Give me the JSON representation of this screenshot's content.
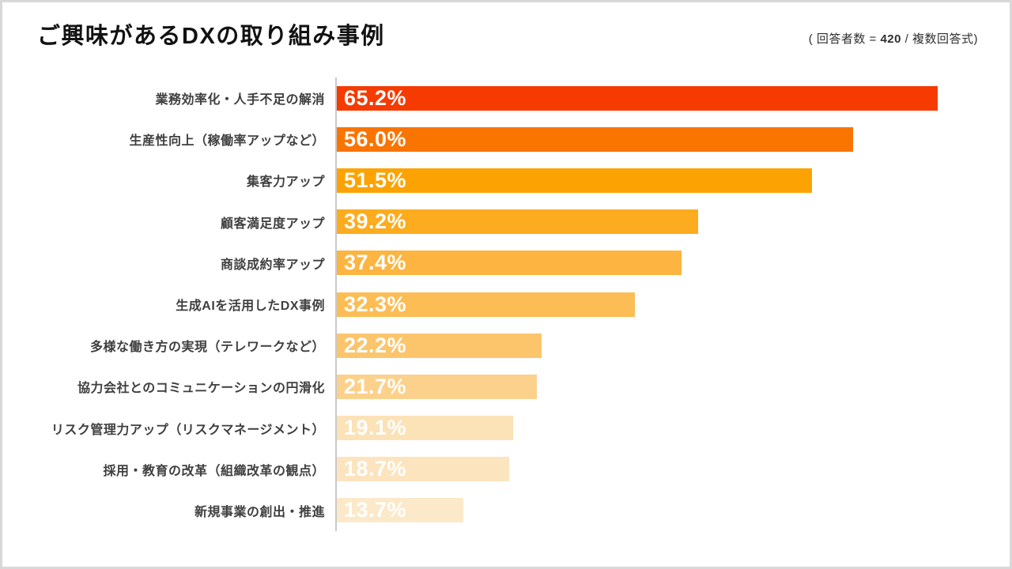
{
  "header": {
    "title": "ご興味があるDXの取り組み事例",
    "note_prefix": "( 回答者数 = ",
    "note_count": "420",
    "note_suffix": " / 複数回答式)"
  },
  "chart_data": {
    "type": "bar",
    "orientation": "horizontal",
    "title": "ご興味があるDXの取り組み事例",
    "subtitle": "( 回答者数 = 420 / 複数回答式)",
    "categories": [
      "業務効率化・人手不足の解消",
      "生産性向上（稼働率アップなど）",
      "集客力アップ",
      "顧客満足度アップ",
      "商談成約率アップ",
      "生成AIを活用したDX事例",
      "多様な働き方の実現（テレワークなど）",
      "協力会社とのコミュニケーションの円滑化",
      "リスク管理力アップ（リスクマネージメント）",
      "採用・教育の改革（組織改革の観点）",
      "新規事業の創出・推進"
    ],
    "values": [
      65.2,
      56.0,
      51.5,
      39.2,
      37.4,
      32.3,
      22.2,
      21.7,
      19.1,
      18.7,
      13.7
    ],
    "value_labels": [
      "65.2%",
      "56.0%",
      "51.5%",
      "39.2%",
      "37.4%",
      "32.3%",
      "22.2%",
      "21.7%",
      "19.1%",
      "18.7%",
      "13.7%"
    ],
    "bar_colors": [
      "#f53b00",
      "#fa7400",
      "#fca303",
      "#fdab1f",
      "#fdb440",
      "#fdbd55",
      "#fcc56b",
      "#fcd18c",
      "#fbe2b7",
      "#fbe4be",
      "#fce9c9"
    ],
    "unit": "%",
    "xlim": [
      0,
      100
    ],
    "grid": false,
    "legend": false,
    "value_label_color": "#ffffff",
    "axis_line_color": "#c9c9c9"
  }
}
